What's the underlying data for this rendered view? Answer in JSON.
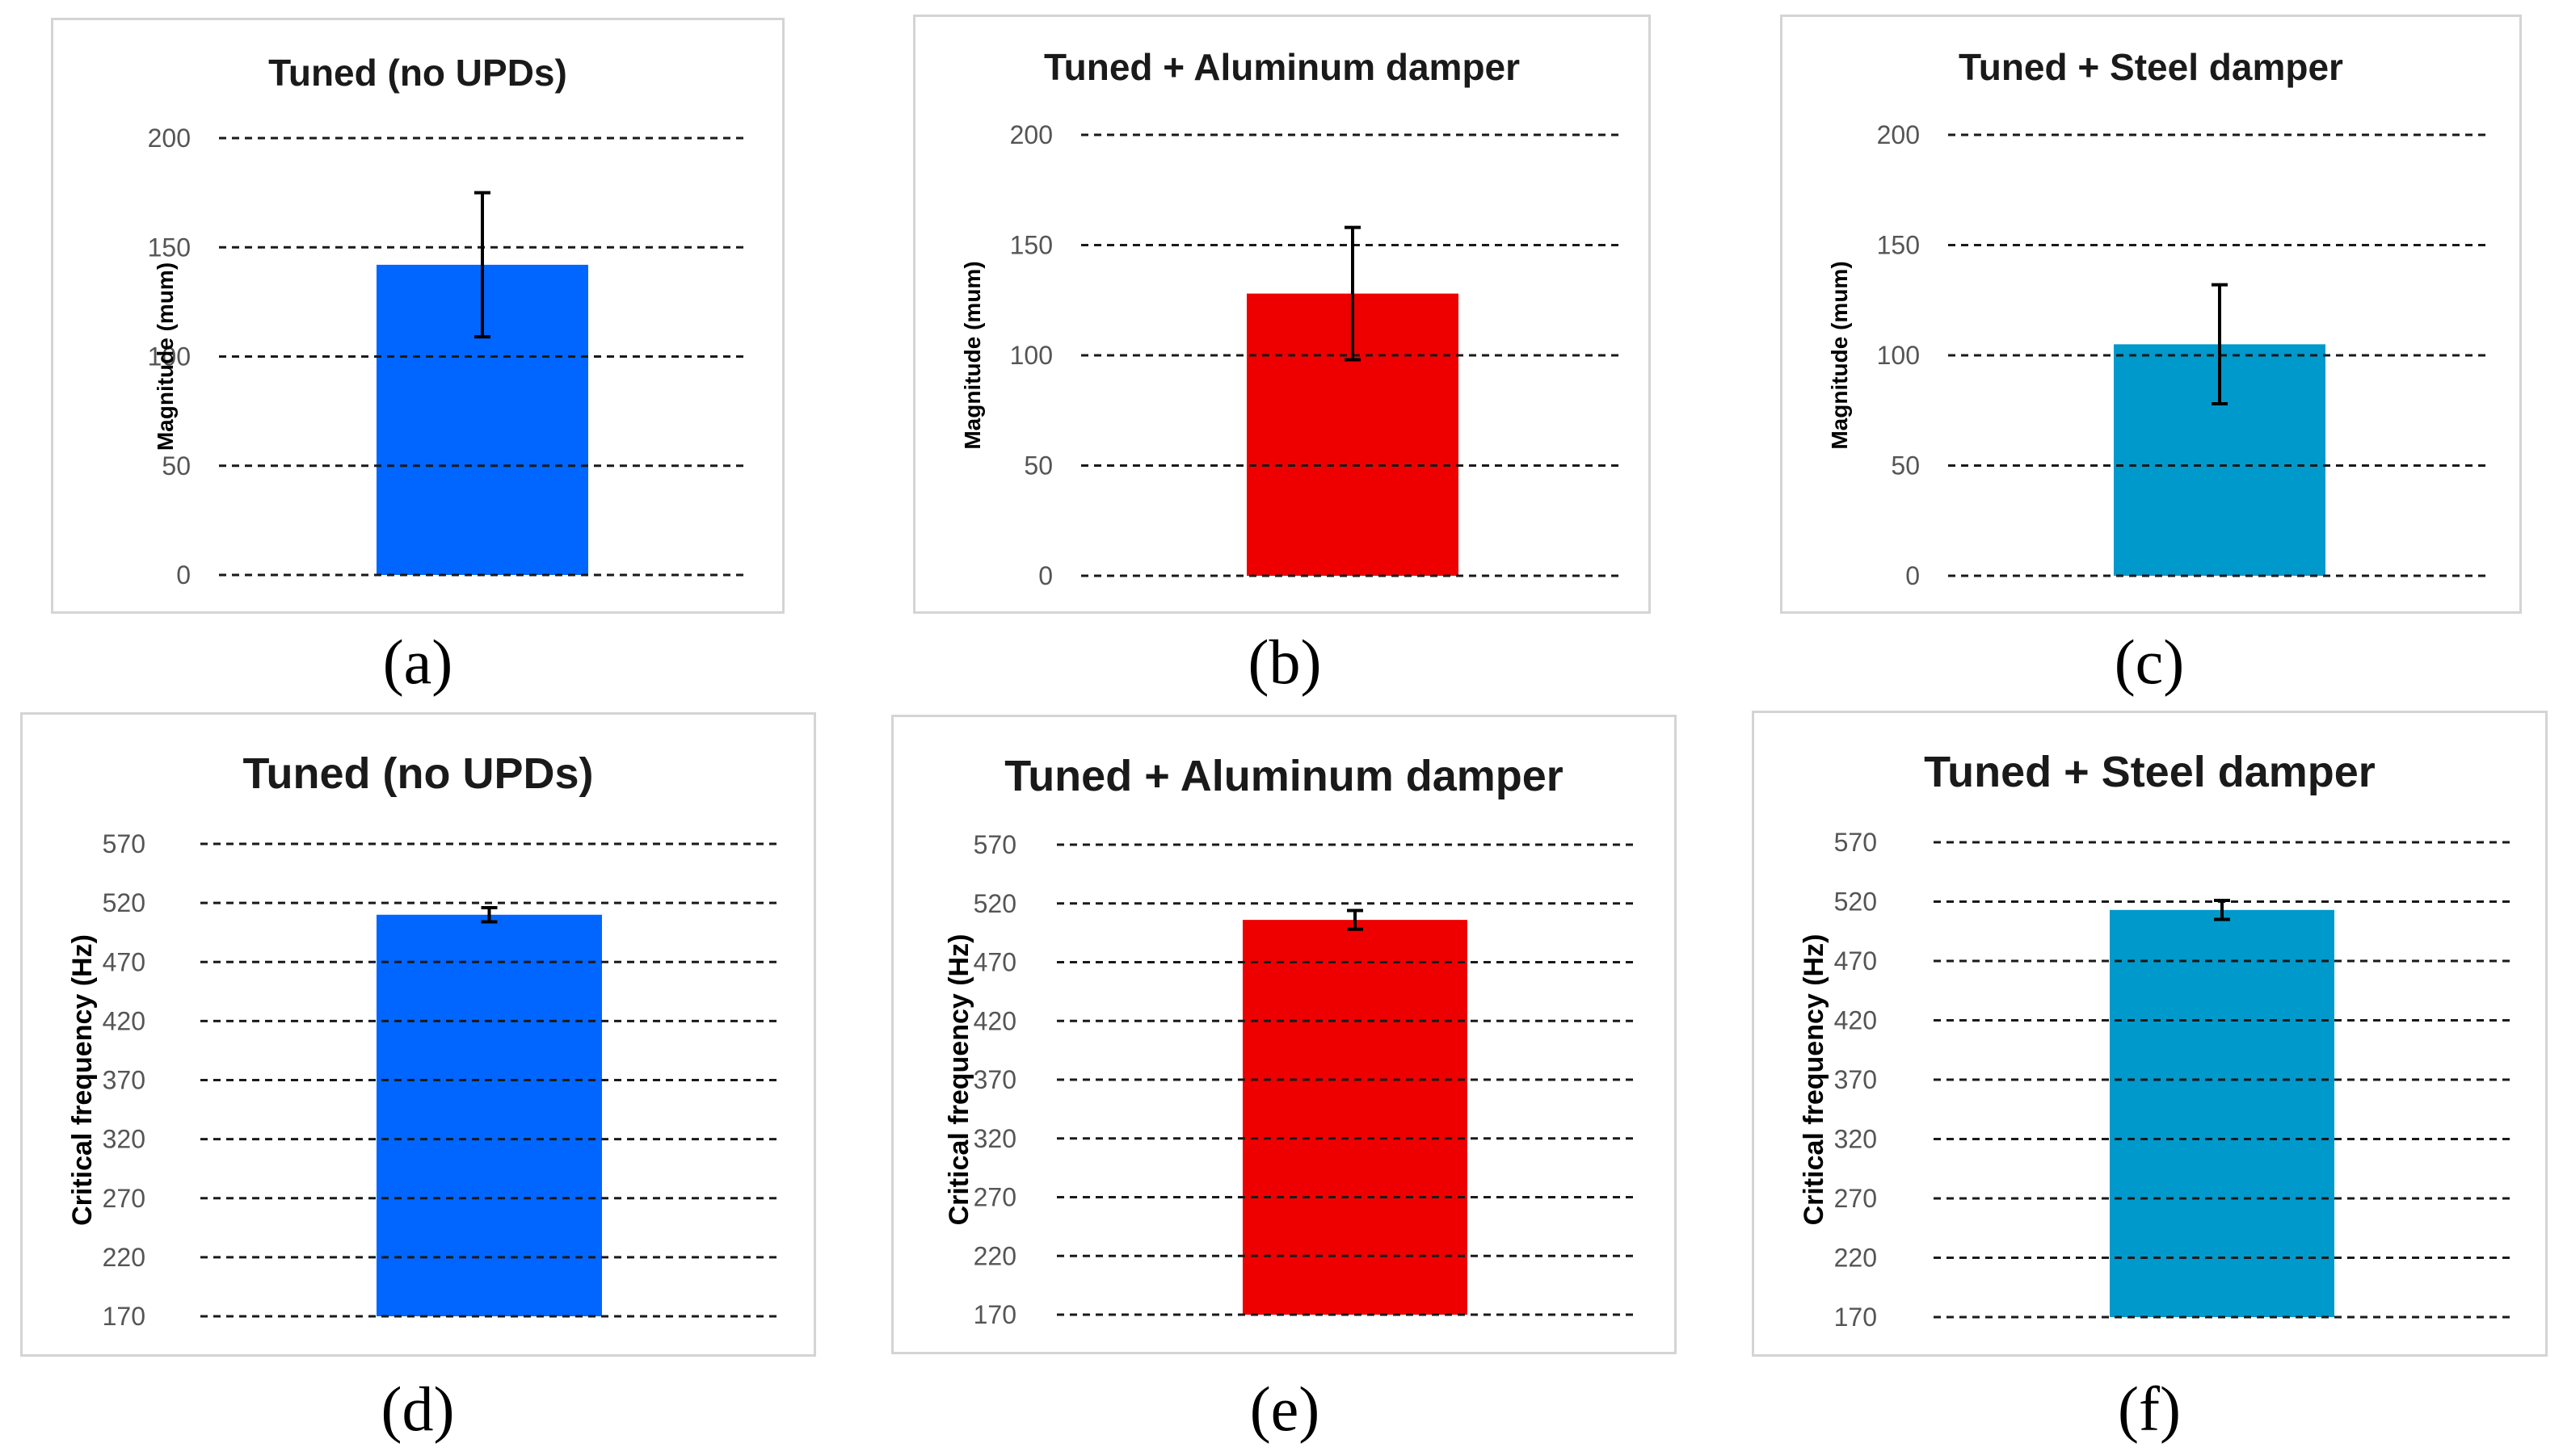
{
  "chart_data": [
    {
      "id": "a",
      "caption": "(a)",
      "type": "bar",
      "title": "Tuned (no UPDs)",
      "ylabel": "Magnitude (mum)",
      "ylim": [
        0,
        200
      ],
      "ticks": [
        0,
        50,
        100,
        150,
        200
      ],
      "categories": [
        ""
      ],
      "values": [
        142
      ],
      "error": [
        33
      ],
      "color": "#0066ff",
      "grid": "dashed"
    },
    {
      "id": "b",
      "caption": "(b)",
      "type": "bar",
      "title": "Tuned + Aluminum damper",
      "ylabel": "Magnitude (mum)",
      "ylim": [
        0,
        200
      ],
      "ticks": [
        0,
        50,
        100,
        150,
        200
      ],
      "categories": [
        ""
      ],
      "values": [
        128
      ],
      "error": [
        30
      ],
      "color": "#ee0000",
      "grid": "dashed"
    },
    {
      "id": "c",
      "caption": "(c)",
      "type": "bar",
      "title": "Tuned + Steel damper",
      "ylabel": "Magnitude (mum)",
      "ylim": [
        0,
        200
      ],
      "ticks": [
        0,
        50,
        100,
        150,
        200
      ],
      "categories": [
        ""
      ],
      "values": [
        105
      ],
      "error": [
        27
      ],
      "color": "#0099cc",
      "grid": "dashed"
    },
    {
      "id": "d",
      "caption": "(d)",
      "type": "bar",
      "title": "Tuned (no UPDs)",
      "ylabel": "Critical frequency (Hz)",
      "ylim": [
        170,
        570
      ],
      "ticks": [
        170,
        220,
        270,
        320,
        370,
        420,
        470,
        520,
        570
      ],
      "categories": [
        ""
      ],
      "values": [
        510
      ],
      "error": [
        6
      ],
      "color": "#0066ff",
      "grid": "dashed"
    },
    {
      "id": "e",
      "caption": "(e)",
      "type": "bar",
      "title": "Tuned + Aluminum damper",
      "ylabel": "Critical frequency (Hz)",
      "ylim": [
        170,
        570
      ],
      "ticks": [
        170,
        220,
        270,
        320,
        370,
        420,
        470,
        520,
        570
      ],
      "categories": [
        ""
      ],
      "values": [
        506
      ],
      "error": [
        8
      ],
      "color": "#ee0000",
      "grid": "dashed"
    },
    {
      "id": "f",
      "caption": "(f)",
      "type": "bar",
      "title": "Tuned + Steel damper",
      "ylabel": "Critical frequency (Hz)",
      "ylim": [
        170,
        570
      ],
      "ticks": [
        170,
        220,
        270,
        320,
        370,
        420,
        470,
        520,
        570
      ],
      "categories": [
        ""
      ],
      "values": [
        513
      ],
      "error": [
        8
      ],
      "color": "#0099cc",
      "grid": "dashed"
    }
  ]
}
